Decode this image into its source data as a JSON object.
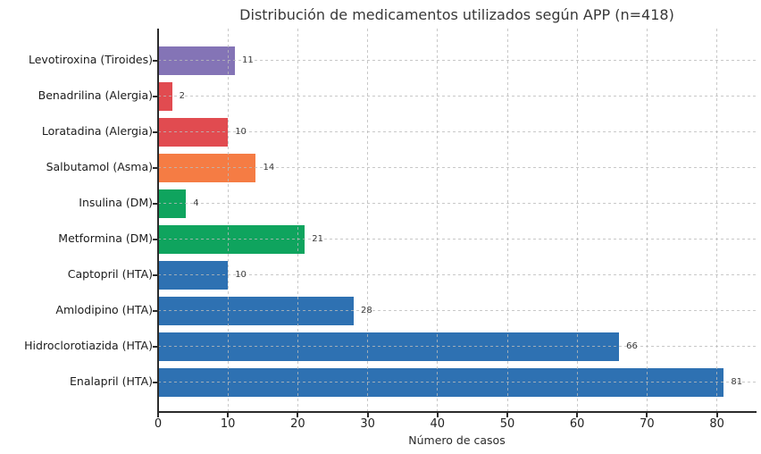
{
  "chart_data": {
    "type": "bar",
    "orientation": "horizontal",
    "title": "Distribución de medicamentos utilizados según APP (n=418)",
    "xlabel": "Número de casos",
    "categories": [
      "Levotiroxina (Tiroides)",
      "Benadrilina (Alergia)",
      "Loratadina (Alergia)",
      "Salbutamol (Asma)",
      "Insulina (DM)",
      "Metformina (DM)",
      "Captopril (HTA)",
      "Amlodipino (HTA)",
      "Hidroclorotiazida (HTA)",
      "Enalapril (HTA)"
    ],
    "values": [
      11,
      2,
      10,
      14,
      4,
      21,
      10,
      28,
      66,
      81
    ],
    "bar_colors": [
      "#8474b6",
      "#e14b50",
      "#e14b50",
      "#f57c44",
      "#0fa45e",
      "#0fa45e",
      "#2e71b2",
      "#2e71b2",
      "#2e71b2",
      "#2e71b2"
    ],
    "xlim": [
      0,
      85.5
    ],
    "xticks": [
      "0",
      "10",
      "20",
      "30",
      "40",
      "50",
      "60",
      "70",
      "80"
    ],
    "grid": "dashed",
    "legend": "none",
    "value_labels_shown": true
  }
}
